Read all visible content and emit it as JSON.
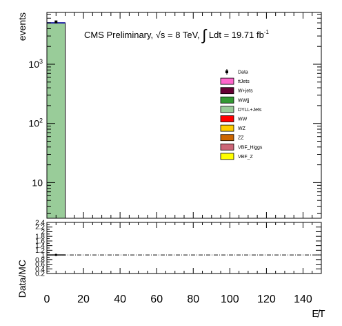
{
  "header": {
    "prefix": "CMS Preliminary, ",
    "sqrts": "√s",
    "energy": " = 8 TeV, ",
    "integral": "∫",
    "lumi": " Ldt = 19.71 fb",
    "lumi_exp": "-1"
  },
  "chart_data": [
    {
      "type": "bar",
      "panel": "main",
      "ylabel": "events",
      "xlabel": "E̸T",
      "yscale": "log",
      "xlim": [
        0,
        150
      ],
      "ylim": [
        2.5,
        7500
      ],
      "grid": false,
      "legend_position": "right-center",
      "x_tick_labels": [
        "0",
        "20",
        "40",
        "60",
        "80",
        "100",
        "120",
        "140"
      ],
      "y_tick_labels": [
        "10",
        "10²",
        "10³"
      ],
      "x_bin_edges": [
        0,
        10
      ],
      "series": [
        {
          "name": "DYLL+Jets",
          "color": "#99cc99",
          "values": [
            5000
          ]
        }
      ],
      "mc_total_line_color": "#1f1fa6",
      "data_points": [
        {
          "x": 5,
          "y": 5200,
          "err": 72
        }
      ],
      "legend": [
        {
          "name": "Data",
          "color": "#000000",
          "marker": "point"
        },
        {
          "name": "ttJets",
          "color": "#ff66cc"
        },
        {
          "name": "W+jets",
          "color": "#660033"
        },
        {
          "name": "WWjj",
          "color": "#339933"
        },
        {
          "name": "DYLL+Jets",
          "color": "#99cc99"
        },
        {
          "name": "WW",
          "color": "#ff0000"
        },
        {
          "name": "WZ",
          "color": "#ffcc00"
        },
        {
          "name": "ZZ",
          "color": "#cc6600"
        },
        {
          "name": "VBF_Higgs",
          "color": "#cc6677"
        },
        {
          "name": "VBF_Z",
          "color": "#ffff00"
        }
      ]
    },
    {
      "type": "scatter",
      "panel": "ratio",
      "ylabel": "Data/MC",
      "xlim": [
        0,
        150
      ],
      "ylim": [
        0.2,
        2.4
      ],
      "y_tick_labels": [
        "0.2",
        "0.4",
        "0.6",
        "0.8",
        "1",
        "1.2",
        "1.4",
        "1.6",
        "1.8",
        "2",
        "2.2",
        "2.4"
      ],
      "reference_line": 1.0,
      "points": [
        {
          "x": 5,
          "y": 1.0,
          "xerr": 5
        }
      ]
    }
  ]
}
